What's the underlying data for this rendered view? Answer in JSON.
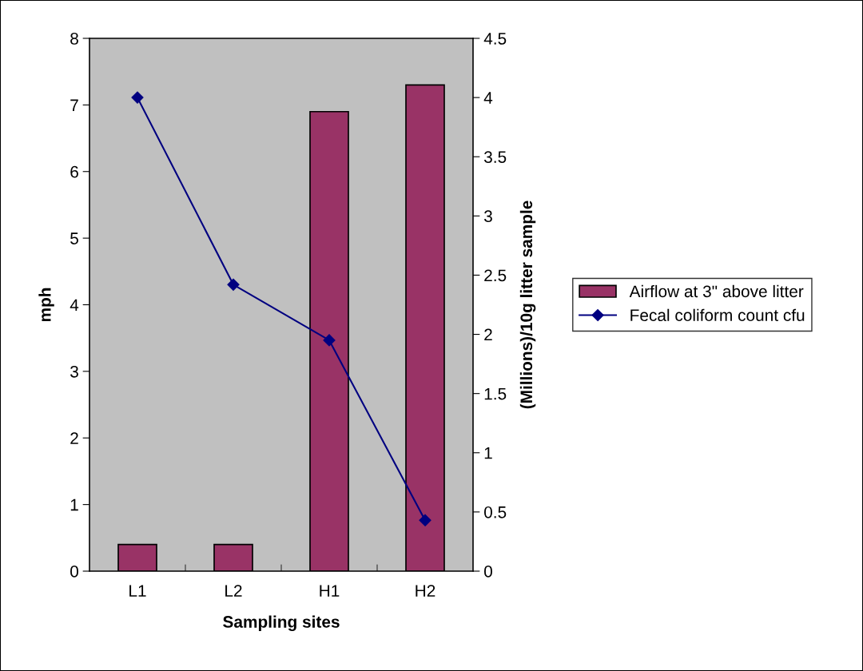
{
  "chart_data": {
    "type": "bar",
    "xlabel": "Sampling sites",
    "ylabel": "mph",
    "y2label": "(Millions)/10g litter sample",
    "categories": [
      "L1",
      "L2",
      "H1",
      "H2"
    ],
    "series": [
      {
        "name": "Airflow at 3\" above litter",
        "color": "#993366",
        "values": [
          0.4,
          0.4,
          6.9,
          7.3
        ]
      },
      {
        "name": "Fecal coliform count cfu",
        "type": "line",
        "axis": "y2",
        "color": "#000080",
        "marker": "diamond",
        "line_style": "solid",
        "values": [
          4.0,
          2.42,
          1.95,
          0.43
        ]
      }
    ],
    "ylim": [
      0,
      8
    ],
    "yticks": [
      0,
      1,
      2,
      3,
      4,
      5,
      6,
      7,
      8
    ],
    "y2lim": [
      0,
      4.5
    ],
    "y2ticks": [
      0,
      0.5,
      1,
      1.5,
      2,
      2.5,
      3,
      3.5,
      4,
      4.5
    ],
    "grid": false,
    "legend": "right"
  }
}
